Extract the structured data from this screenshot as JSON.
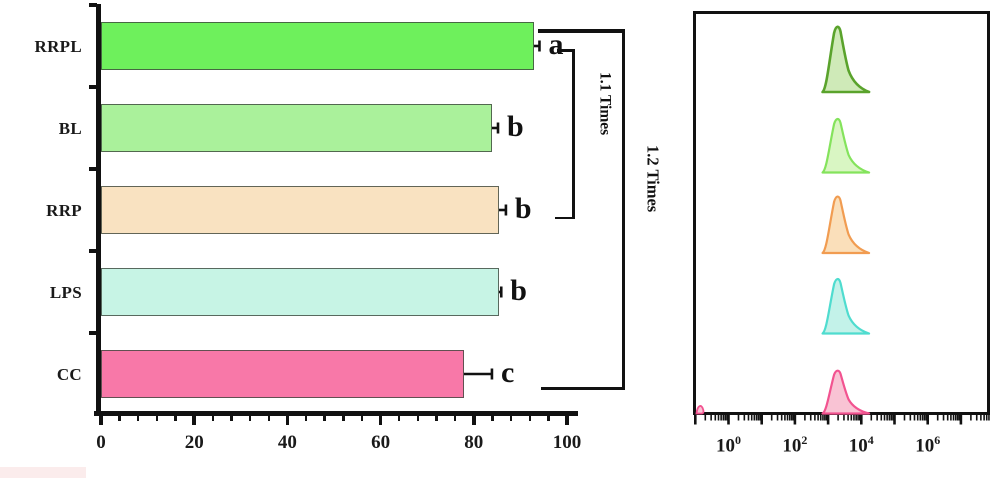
{
  "figure": {
    "description": "Two-panel scientific figure: horizontal bar chart with significance letters and fold-change brackets (left), stacked flow-cytometry fluorescence histograms on a log axis (right)",
    "background": "#ffffff",
    "axis_color": "#111111",
    "watermark_remnant_color": "#fbecec"
  },
  "chart_data": [
    {
      "type": "bar",
      "orientation": "horizontal",
      "title": "",
      "xlabel": "",
      "ylabel": "",
      "categories": [
        "RRPL",
        "BL",
        "RRP",
        "LPS",
        "CC"
      ],
      "values": [
        93,
        84,
        85.5,
        85.5,
        78
      ],
      "errors": [
        1.2,
        1.3,
        1.5,
        0.5,
        6
      ],
      "sig_letters": [
        "a",
        "b",
        "b",
        "b",
        "c"
      ],
      "bar_colors": [
        "#6ef05c",
        "#aaf19b",
        "#f9e2c1",
        "#c7f4e5",
        "#f878a8"
      ],
      "xlim": [
        0,
        100
      ],
      "x_major_ticks": [
        0,
        20,
        40,
        60,
        80,
        100
      ],
      "x_minor_step": 4,
      "grid": false,
      "annotations": [
        {
          "label": "1.1 Times",
          "from_category": "RRPL",
          "to_category": "RRP"
        },
        {
          "label": "1.2 Times",
          "from_category": "RRPL",
          "to_category": "CC"
        }
      ]
    },
    {
      "type": "area",
      "subtype": "flow-cytometry-histograms",
      "title": "",
      "x_scale": "log10",
      "x_decade_range": [
        -1,
        8
      ],
      "x_tick_label_exponents": [
        0,
        2,
        4,
        6
      ],
      "grid": false,
      "series": [
        {
          "name": "RRPL",
          "stroke": "#5aa32c",
          "fill": "#cfeab8",
          "baseline": "#8cc87c",
          "peak_log10": 3.3,
          "peak_height": 67
        },
        {
          "name": "BL",
          "stroke": "#84e35c",
          "fill": "#d9f6c3",
          "baseline": "#a8ec8c",
          "peak_log10": 3.3,
          "peak_height": 55
        },
        {
          "name": "RRP",
          "stroke": "#f19c51",
          "fill": "#fadfba",
          "baseline": "#f6cf9e",
          "peak_log10": 3.3,
          "peak_height": 58
        },
        {
          "name": "LPS",
          "stroke": "#4fdccf",
          "fill": "#c3f2e9",
          "baseline": "#9fe8dc",
          "peak_log10": 3.3,
          "peak_height": 56
        },
        {
          "name": "CC",
          "stroke": "#f25390",
          "fill": "#f9c3d4",
          "baseline": "#f6aac2",
          "peak_log10": 3.3,
          "peak_height": 44
        }
      ]
    }
  ]
}
